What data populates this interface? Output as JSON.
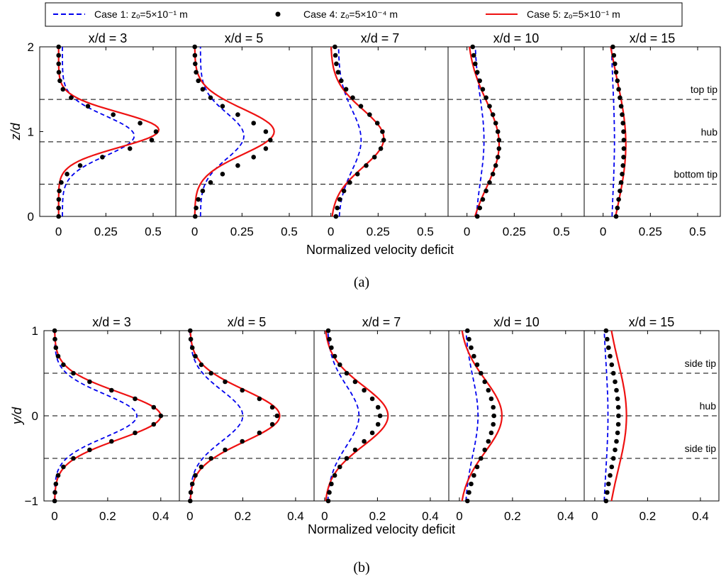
{
  "legend": [
    {
      "label": "Case 1: zₒ=5×10⁻¹ m",
      "style": "dashed",
      "color": "#0000ee"
    },
    {
      "label": "Case 4: zₒ=5×10⁻⁴ m",
      "style": "dots",
      "color": "#000000"
    },
    {
      "label": "Case 5: zₒ=5×10⁻¹ m",
      "style": "solid",
      "color": "#ee1111"
    }
  ],
  "chart_data": [
    {
      "type": "line",
      "panel_label": "(a)",
      "xlabel": "Normalized velocity deficit",
      "ylabel": "z/d",
      "xlim": [
        -0.1,
        0.62
      ],
      "ylim": [
        0,
        2
      ],
      "xticks": [
        0,
        0.25,
        0.5
      ],
      "xtick_labels": [
        "0",
        "0.25",
        "0.5"
      ],
      "yticks": [
        0,
        1,
        2
      ],
      "ytick_labels": [
        "0",
        "1",
        "2"
      ],
      "ref_lines": [
        {
          "y": 1.38,
          "label": "top tip"
        },
        {
          "y": 0.88,
          "label": "hub"
        },
        {
          "y": 0.38,
          "label": "bottom tip"
        }
      ],
      "subplots": [
        {
          "title": "x/d = 3",
          "case1": {
            "amp": 0.38,
            "base": 0.02,
            "center": 0.95,
            "width": 0.33
          },
          "case4": {
            "amp": 0.52,
            "base": 0.0,
            "center": 0.97,
            "width": 0.3
          },
          "case5": {
            "amp": 0.53,
            "base": 0.0,
            "center": 1.02,
            "width": 0.29
          }
        },
        {
          "title": "x/d = 5",
          "case1": {
            "amp": 0.23,
            "base": 0.03,
            "center": 0.95,
            "width": 0.38
          },
          "case4": {
            "amp": 0.4,
            "base": 0.0,
            "center": 0.9,
            "width": 0.4
          },
          "case5": {
            "amp": 0.42,
            "base": 0.0,
            "center": 1.0,
            "width": 0.38
          }
        },
        {
          "title": "x/d = 7",
          "case1": {
            "amp": 0.12,
            "base": 0.04,
            "center": 0.9,
            "width": 0.5
          },
          "case4": {
            "amp": 0.26,
            "base": 0.02,
            "center": 0.92,
            "width": 0.48
          },
          "case5": {
            "amp": 0.28,
            "base": 0.0,
            "center": 0.92,
            "width": 0.48
          }
        },
        {
          "title": "x/d = 10",
          "case1": {
            "amp": 0.05,
            "base": 0.04,
            "center": 0.9,
            "width": 0.7
          },
          "case4": {
            "amp": 0.15,
            "base": 0.02,
            "center": 0.85,
            "width": 0.7
          },
          "case5": {
            "amp": 0.17,
            "base": 0.0,
            "center": 0.85,
            "width": 0.72
          }
        },
        {
          "title": "x/d = 15",
          "case1": {
            "amp": 0.02,
            "base": 0.04,
            "center": 0.9,
            "width": 0.9
          },
          "case4": {
            "amp": 0.08,
            "base": 0.03,
            "center": 0.85,
            "width": 1.0
          },
          "case5": {
            "amp": 0.12,
            "base": 0.0,
            "center": 0.85,
            "width": 1.1
          }
        }
      ]
    },
    {
      "type": "line",
      "panel_label": "(b)",
      "xlabel": "Normalized velocity deficit",
      "ylabel": "y/d",
      "xlim": [
        -0.04,
        0.47
      ],
      "ylim": [
        -1,
        1
      ],
      "xticks": [
        0,
        0.2,
        0.4
      ],
      "xtick_labels": [
        "0",
        "0.2",
        "0.4"
      ],
      "yticks": [
        -1,
        0,
        1
      ],
      "ytick_labels": [
        "−1",
        "0",
        "1"
      ],
      "ref_lines": [
        {
          "y": 0.5,
          "label": "side tip"
        },
        {
          "y": 0.0,
          "label": "hub"
        },
        {
          "y": -0.5,
          "label": "side tip"
        }
      ],
      "subplots": [
        {
          "title": "x/d = 3",
          "case1": {
            "amp": 0.31,
            "base": 0.0,
            "center": 0.0,
            "width": 0.36
          },
          "case4": {
            "amp": 0.4,
            "base": 0.0,
            "center": 0.0,
            "width": 0.38
          },
          "case5": {
            "amp": 0.4,
            "base": 0.0,
            "center": 0.0,
            "width": 0.39
          }
        },
        {
          "title": "x/d = 5",
          "case1": {
            "amp": 0.2,
            "base": 0.0,
            "center": 0.0,
            "width": 0.42
          },
          "case4": {
            "amp": 0.33,
            "base": 0.0,
            "center": 0.0,
            "width": 0.42
          },
          "case5": {
            "amp": 0.34,
            "base": 0.0,
            "center": 0.0,
            "width": 0.43
          }
        },
        {
          "title": "x/d = 7",
          "case1": {
            "amp": 0.12,
            "base": 0.01,
            "center": 0.0,
            "width": 0.5
          },
          "case4": {
            "amp": 0.2,
            "base": 0.01,
            "center": 0.0,
            "width": 0.5
          },
          "case5": {
            "amp": 0.24,
            "base": 0.0,
            "center": 0.0,
            "width": 0.5
          }
        },
        {
          "title": "x/d = 10",
          "case1": {
            "amp": 0.05,
            "base": 0.02,
            "center": 0.0,
            "width": 0.65
          },
          "case4": {
            "amp": 0.11,
            "base": 0.02,
            "center": 0.0,
            "width": 0.65
          },
          "case5": {
            "amp": 0.16,
            "base": 0.0,
            "center": 0.0,
            "width": 0.6
          }
        },
        {
          "title": "x/d = 15",
          "case1": {
            "amp": 0.02,
            "base": 0.03,
            "center": 0.0,
            "width": 0.9
          },
          "case4": {
            "amp": 0.06,
            "base": 0.03,
            "center": 0.0,
            "width": 0.8
          },
          "case5": {
            "amp": 0.08,
            "base": 0.04,
            "center": 0.0,
            "width": 0.9
          }
        }
      ]
    }
  ]
}
